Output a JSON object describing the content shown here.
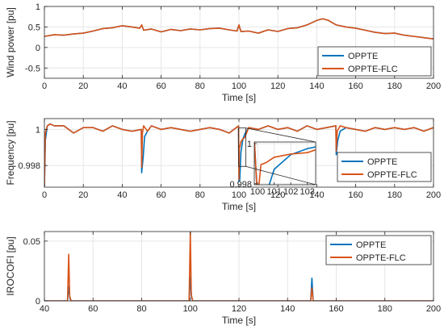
{
  "colors": {
    "opte": "#0072BD",
    "flc": "#D95319",
    "grid": "#e6e6e6",
    "axis": "#262626"
  },
  "chart_data": [
    {
      "type": "line",
      "ylabel": "Wind power [pu]",
      "xlabel": "Time [s]",
      "xlim": [
        0,
        200
      ],
      "ylim": [
        -0.75,
        1.0
      ],
      "xticks": [
        0,
        20,
        40,
        60,
        80,
        100,
        120,
        140,
        160,
        180,
        200
      ],
      "yticks": [
        -0.5,
        0,
        0.5,
        1
      ],
      "ytick_labels": [
        "-0.5",
        "0",
        "0.5",
        "1"
      ],
      "grid": true,
      "legend": "bottom-right",
      "series": [
        {
          "name": "OPPTE",
          "color": "#0072BD",
          "x": [
            0,
            5,
            10,
            15,
            20,
            25,
            30,
            35,
            40,
            45,
            49,
            50,
            51,
            55,
            60,
            65,
            70,
            75,
            80,
            85,
            90,
            95,
            99,
            100,
            101,
            105,
            110,
            115,
            120,
            125,
            130,
            135,
            140,
            143,
            146,
            150,
            155,
            160,
            165,
            170,
            175,
            180,
            185,
            190,
            195,
            200
          ],
          "y": [
            0.27,
            0.31,
            0.3,
            0.33,
            0.35,
            0.4,
            0.46,
            0.48,
            0.53,
            0.5,
            0.47,
            0.55,
            0.42,
            0.45,
            0.38,
            0.44,
            0.41,
            0.45,
            0.43,
            0.46,
            0.47,
            0.43,
            0.4,
            0.55,
            0.39,
            0.4,
            0.35,
            0.43,
            0.39,
            0.46,
            0.48,
            0.55,
            0.66,
            0.7,
            0.66,
            0.55,
            0.5,
            0.47,
            0.42,
            0.37,
            0.34,
            0.35,
            0.3,
            0.27,
            0.24,
            0.21
          ]
        },
        {
          "name": "OPPTE-FLC",
          "color": "#D95319",
          "x": [
            0,
            5,
            10,
            15,
            20,
            25,
            30,
            35,
            40,
            45,
            49,
            50,
            51,
            55,
            60,
            65,
            70,
            75,
            80,
            85,
            90,
            95,
            99,
            100,
            101,
            105,
            110,
            115,
            120,
            125,
            130,
            135,
            140,
            143,
            146,
            150,
            155,
            160,
            165,
            170,
            175,
            180,
            185,
            190,
            195,
            200
          ],
          "y": [
            0.27,
            0.31,
            0.3,
            0.33,
            0.35,
            0.4,
            0.46,
            0.48,
            0.53,
            0.5,
            0.47,
            0.55,
            0.42,
            0.45,
            0.38,
            0.44,
            0.41,
            0.45,
            0.43,
            0.46,
            0.47,
            0.43,
            0.4,
            0.55,
            0.39,
            0.4,
            0.35,
            0.43,
            0.39,
            0.46,
            0.48,
            0.55,
            0.66,
            0.7,
            0.66,
            0.55,
            0.5,
            0.47,
            0.42,
            0.37,
            0.34,
            0.35,
            0.3,
            0.27,
            0.24,
            0.21
          ]
        }
      ]
    },
    {
      "type": "line",
      "ylabel": "Frequency [pu]",
      "xlabel": "Time [s]",
      "xlim": [
        0,
        200
      ],
      "ylim": [
        0.9968,
        1.0006
      ],
      "xticks": [
        0,
        20,
        40,
        60,
        80,
        100,
        120,
        140,
        160,
        180,
        200
      ],
      "yticks": [
        0.998,
        1.0
      ],
      "ytick_labels": [
        "0.998",
        "1"
      ],
      "grid": true,
      "legend": "right",
      "series": [
        {
          "name": "OPPTE",
          "color": "#0072BD",
          "x": [
            0,
            0.5,
            1.5,
            3,
            5,
            10,
            15,
            20,
            25,
            30,
            35,
            40,
            45,
            49.8,
            50,
            50.8,
            51.5,
            53,
            55,
            60,
            65,
            70,
            75,
            80,
            85,
            90,
            95,
            99.8,
            100,
            100.4,
            101,
            102,
            103,
            105,
            110,
            115,
            120,
            125,
            130,
            135,
            140,
            145,
            149.8,
            150,
            150.8,
            152,
            155,
            160,
            165,
            170,
            175,
            180,
            185,
            190,
            195,
            200
          ],
          "y": [
            0.99685,
            0.9994,
            1.0002,
            1.0003,
            1.0002,
            1.0002,
            0.9998,
            1.0001,
            1.0001,
            0.9999,
            1.0002,
            1.0,
            0.9999,
            1.0,
            0.9976,
            0.9985,
            0.9996,
            0.9999,
            1.0002,
            1.0,
            1.0001,
            1.0,
            0.9999,
            1.0,
            1.0001,
            1.0,
            0.9998,
            1.0002,
            0.99712,
            0.99718,
            0.99872,
            0.99945,
            0.99975,
            1.0001,
            1.0,
            1.0002,
            1.0,
            1.0001,
            0.9999,
            1.0002,
            1.0,
            1.0001,
            1.0002,
            0.9986,
            0.9994,
            0.9999,
            1.0001,
            1.0,
            0.9999,
            1.0001,
            1.0,
            1.0001,
            1.0,
            1.0001,
            0.9999,
            1.0001
          ]
        },
        {
          "name": "OPPTE-FLC",
          "color": "#D95319",
          "x": [
            0,
            0.5,
            1.5,
            3,
            5,
            10,
            15,
            20,
            25,
            30,
            35,
            40,
            45,
            49.8,
            50,
            50.4,
            51,
            53,
            55,
            60,
            65,
            70,
            75,
            80,
            85,
            90,
            95,
            99.8,
            100,
            100.2,
            100.5,
            101,
            102,
            103,
            105,
            110,
            115,
            120,
            125,
            130,
            135,
            140,
            145,
            149.8,
            150,
            150.5,
            152,
            155,
            160,
            165,
            170,
            175,
            180,
            185,
            190,
            195,
            200
          ],
          "y": [
            0.99685,
            0.9998,
            1.0002,
            1.0003,
            1.0002,
            1.0002,
            0.9998,
            1.0001,
            1.0001,
            0.9999,
            1.0002,
            1.0,
            0.9999,
            1.0,
            0.9979,
            0.9998,
            1.0002,
            0.9999,
            1.0002,
            1.0,
            1.0001,
            1.0,
            0.9999,
            1.0,
            1.0001,
            1.0,
            0.9998,
            1.0002,
            0.99722,
            0.99895,
            0.99905,
            0.99932,
            0.99948,
            0.99955,
            1.0001,
            1.0,
            1.0002,
            1.0,
            1.0001,
            0.9999,
            1.0002,
            1.0,
            1.0001,
            1.0002,
            0.9988,
            0.9999,
            1.0002,
            1.0001,
            1.0,
            0.9999,
            1.0001,
            1.0,
            1.0001,
            1.0,
            1.0001,
            0.9999,
            1.0001
          ]
        }
      ],
      "inset": {
        "xlim": [
          99.8,
          103.5
        ],
        "ylim": [
          0.99795,
          1.00008
        ],
        "xticks": [
          100,
          101,
          102,
          103
        ],
        "yticks": [
          0.998,
          1.0
        ],
        "ytick_labels": [
          "0.998",
          "1"
        ]
      }
    },
    {
      "type": "line",
      "ylabel": "IROCOFI [pu]",
      "xlabel": "Time [s]",
      "xlim": [
        40,
        200
      ],
      "ylim": [
        0,
        0.058
      ],
      "xticks": [
        40,
        60,
        80,
        100,
        120,
        140,
        160,
        180,
        200
      ],
      "yticks": [
        0,
        0.05
      ],
      "ytick_labels": [
        "0",
        "0.05"
      ],
      "grid": true,
      "legend": "top-right",
      "series": [
        {
          "name": "OPPTE",
          "color": "#0072BD",
          "x": [
            40,
            49.5,
            50,
            50.5,
            51,
            99.5,
            100,
            100.5,
            101,
            149.5,
            150,
            150.5,
            200
          ],
          "y": [
            0.0,
            0.0,
            0.012,
            0.002,
            0.0,
            0.0,
            0.02,
            0.003,
            0.0,
            0.0,
            0.019,
            0.0,
            0.0
          ]
        },
        {
          "name": "OPPTE-FLC",
          "color": "#D95319",
          "x": [
            40,
            49.5,
            50,
            50.4,
            51,
            99.5,
            100,
            100.4,
            101,
            149.5,
            150,
            150.5,
            200
          ],
          "y": [
            0.0,
            0.0,
            0.039,
            0.004,
            0.0,
            0.0,
            0.058,
            0.005,
            0.0,
            0.0,
            0.011,
            0.0,
            0.0
          ]
        }
      ]
    }
  ]
}
